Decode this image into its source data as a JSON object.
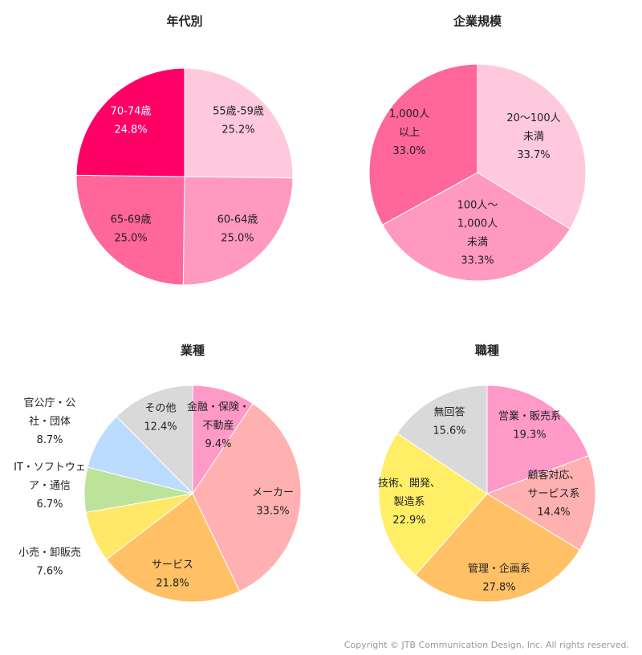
{
  "chart_data": [
    {
      "type": "pie",
      "title": "年代別",
      "categories": [
        [
          "55歳-59歳"
        ],
        [
          "60-64歳"
        ],
        [
          "65-69歳"
        ],
        [
          "70-74歳"
        ]
      ],
      "values": [
        25.2,
        25.0,
        25.0,
        24.8
      ],
      "value_labels": [
        "25.2%",
        "25.0%",
        "25.0%",
        "24.8%"
      ],
      "colors": [
        "#ffc9dd",
        "#ff99c0",
        "#ff6699",
        "#ff0066"
      ]
    },
    {
      "type": "pie",
      "title": "企業規模",
      "categories": [
        [
          "20～100人",
          "未満"
        ],
        [
          "100人～",
          "1,000人",
          "未満"
        ],
        [
          "1,000人",
          "以上"
        ]
      ],
      "values": [
        33.7,
        33.3,
        33.0
      ],
      "value_labels": [
        "33.7%",
        "33.3%",
        "33.0%"
      ],
      "colors": [
        "#ffc9dd",
        "#ff99c0",
        "#ff6699"
      ]
    },
    {
      "type": "pie",
      "title": "業種",
      "categories": [
        [
          "金融・保険・",
          "不動産"
        ],
        [
          "メーカー"
        ],
        [
          "サービス"
        ],
        [
          "小売・卸販売"
        ],
        [
          "IT・ソフトウェ",
          "ア・通信"
        ],
        [
          "官公庁・公",
          "社・団体"
        ],
        [
          "その他"
        ]
      ],
      "values": [
        9.4,
        33.5,
        21.8,
        7.6,
        6.7,
        8.7,
        12.4
      ],
      "value_labels": [
        "9.4%",
        "33.5%",
        "21.8%",
        "7.6%",
        "6.7%",
        "8.7%",
        "12.4%"
      ],
      "colors": [
        "#ff99c8",
        "#ffb0b0",
        "#ffc066",
        "#ffe866",
        "#bde39a",
        "#bcdcff",
        "#d9d9d9"
      ]
    },
    {
      "type": "pie",
      "title": "職種",
      "categories": [
        [
          "営業・販売系"
        ],
        [
          "顧客対応、",
          "サービス系"
        ],
        [
          "管理・企画系"
        ],
        [
          "技術、開発、",
          "製造系"
        ],
        [
          "無回答"
        ]
      ],
      "values": [
        19.3,
        14.4,
        27.8,
        22.9,
        15.6
      ],
      "value_labels": [
        "19.3%",
        "14.4%",
        "27.8%",
        "22.9%",
        "15.6%"
      ],
      "colors": [
        "#ff99c8",
        "#ffb0b0",
        "#ffc066",
        "#ffee66",
        "#d9d9d9"
      ]
    }
  ],
  "footer": "Copyright © JTB Communication Design, Inc. All rights reserved."
}
